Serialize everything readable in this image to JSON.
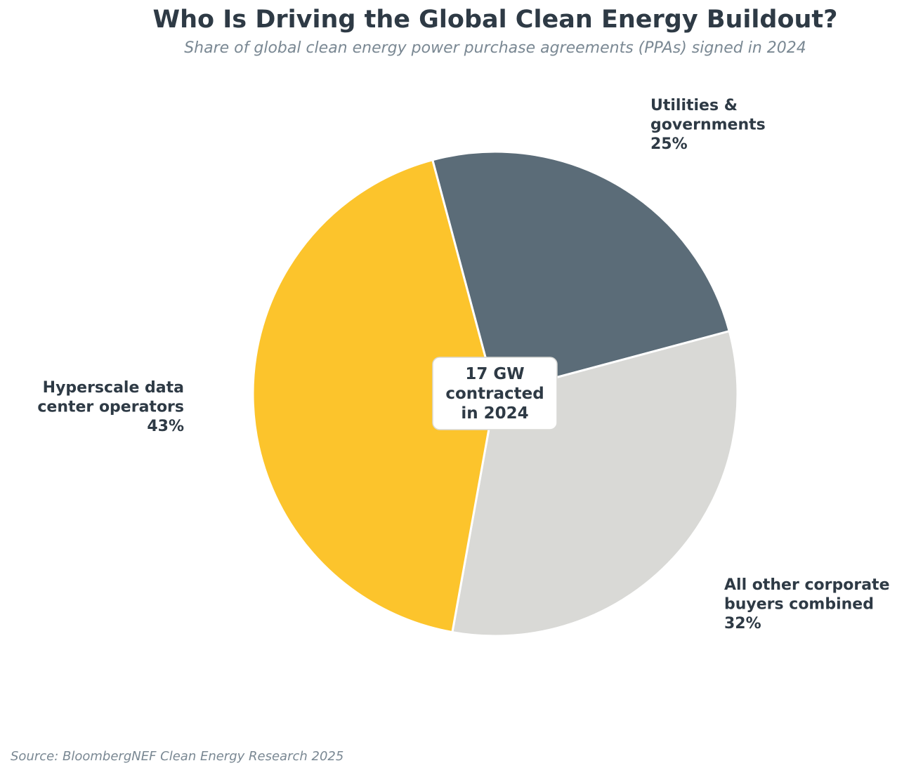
{
  "header": {
    "title": "Who Is Driving the Global Clean Energy Buildout?",
    "subtitle": "Share of global clean energy power purchase agreements (PPAs) signed in 2024"
  },
  "footer": {
    "source": "Source: BloombergNEF Clean Energy Research 2025"
  },
  "center_label": {
    "lines": [
      "17 GW",
      "contracted",
      "in 2024"
    ]
  },
  "chart_data": {
    "type": "pie",
    "title": "Who Is Driving the Global Clean Energy Buildout?",
    "subtitle": "Share of global clean energy power purchase agreements (PPAs) signed in 2024",
    "total_label": "17 GW contracted in 2024",
    "slices": [
      {
        "label": "Utilities & governments",
        "label_lines": [
          "Utilities &",
          "governments"
        ],
        "value": 25,
        "value_label": "25%",
        "color": "#5b6c78"
      },
      {
        "label": "All other corporate buyers combined",
        "label_lines": [
          "All other corporate",
          "buyers combined"
        ],
        "value": 32,
        "value_label": "32%",
        "color": "#d9d9d6"
      },
      {
        "label": "Hyperscale data center operators",
        "label_lines": [
          "Hyperscale data",
          "center operators"
        ],
        "value": 43,
        "value_label": "43%",
        "color": "#fcc42c"
      }
    ],
    "start_angle_deg": 105,
    "direction": "clockwise"
  }
}
